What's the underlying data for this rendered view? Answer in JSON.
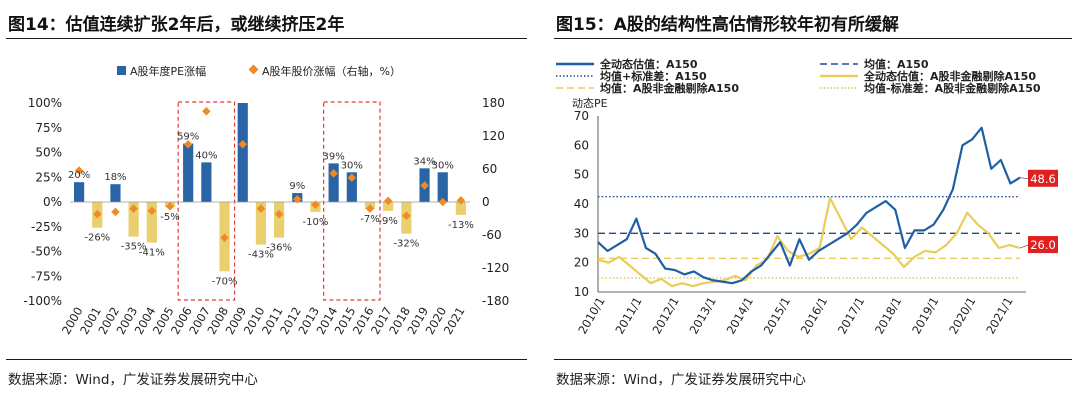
{
  "left": {
    "title": "图14：估值连续扩张2年后，或继续挤压2年",
    "source": "数据来源：Wind，广发证券发展研究中心",
    "chart_data": {
      "type": "bar",
      "categories": [
        "2000",
        "2001",
        "2002",
        "2003",
        "2004",
        "2005",
        "2006",
        "2007",
        "2008",
        "2009",
        "2010",
        "2011",
        "2012",
        "2013",
        "2014",
        "2015",
        "2016",
        "2017",
        "2018",
        "2019",
        "2020",
        "2021"
      ],
      "series": [
        {
          "name": "A股年度PE涨幅",
          "kind": "bar",
          "axis": "left",
          "unit": "%",
          "values": [
            20,
            -26,
            18,
            -35,
            -41,
            -5,
            59,
            40,
            -70,
            100,
            -43,
            -36,
            9,
            -10,
            39,
            30,
            -7,
            -9,
            -32,
            34,
            30,
            -13
          ]
        },
        {
          "name": "A股年股价涨幅（右轴，%）",
          "kind": "marker",
          "axis": "right",
          "unit": "%",
          "values": [
            57,
            -22,
            -18,
            -12,
            -16,
            -8,
            105,
            165,
            -65,
            105,
            -12,
            -22,
            5,
            -5,
            52,
            44,
            -12,
            2,
            -25,
            30,
            0,
            3
          ]
        }
      ],
      "bar_labels": [
        "20%",
        "-26%",
        "18%",
        "-35%",
        "-41%",
        "-5%",
        "59%",
        "40%",
        "-70%",
        "",
        "-43%",
        "-36%",
        "9%",
        "-10%",
        "39%",
        "30%",
        "-7%",
        "-9%",
        "-32%",
        "34%",
        "30%",
        "-13%"
      ],
      "y_left": {
        "min": -100,
        "max": 100,
        "ticks": [
          "100%",
          "75%",
          "50%",
          "25%",
          "0%",
          "-25%",
          "-50%",
          "-75%",
          "-100%"
        ]
      },
      "y_right": {
        "min": -180,
        "max": 180,
        "ticks": [
          "180",
          "120",
          "60",
          "0",
          "-60",
          "-120",
          "-180"
        ]
      },
      "highlight_ranges": [
        [
          "2006",
          "2008"
        ],
        [
          "2014",
          "2016"
        ]
      ],
      "colors": {
        "bar_up": "#2864a6",
        "bar_down": "#e9cf6e",
        "marker": "#f08a24",
        "highlight": "#e53935"
      }
    }
  },
  "right": {
    "title": "图15：A股的结构性高估情形较年初有所缓解",
    "source": "数据来源：Wind，广发证券发展研究中心",
    "chart_data": {
      "type": "line",
      "ylabel": "动态PE",
      "ylim": [
        10,
        70
      ],
      "yticks": [
        "70",
        "60",
        "50",
        "40",
        "30",
        "20",
        "10"
      ],
      "xticks": [
        "2010/1",
        "2011/1",
        "2012/1",
        "2013/1",
        "2014/1",
        "2015/1",
        "2016/1",
        "2017/1",
        "2018/1",
        "2019/1",
        "2020/1",
        "2021/1"
      ],
      "series": [
        {
          "name": "全动态估值：A150",
          "style": "solid",
          "color": "#1f5fa6",
          "values": [
            27,
            24,
            26,
            28,
            35,
            25,
            23,
            18,
            17.5,
            16,
            17,
            15,
            14,
            13.5,
            13,
            14,
            17,
            19,
            23,
            27,
            19,
            28,
            21,
            24,
            26,
            28,
            30,
            33,
            37,
            39,
            41,
            38,
            25,
            31,
            31,
            33,
            38,
            45,
            60,
            62,
            66,
            52,
            55,
            47,
            49
          ]
        },
        {
          "name": "均值：A150",
          "style": "dashed",
          "color": "#1f4e8c",
          "values": [
            30,
            30
          ]
        },
        {
          "name": "均值+标准差：A150",
          "style": "dotted",
          "color": "#1f4e8c",
          "values": [
            42.5,
            42.5
          ]
        },
        {
          "name": "全动态估值：A股非金融剔除A150",
          "style": "solid",
          "color": "#e9cc5a",
          "values": [
            21,
            20,
            22,
            19,
            16,
            13,
            14.5,
            12,
            13,
            12,
            13,
            13.5,
            14,
            15.5,
            14,
            19,
            21,
            29,
            24,
            22,
            23,
            25,
            42,
            35,
            28,
            32,
            29,
            26,
            23,
            18.5,
            22,
            24,
            23.5,
            26,
            30,
            37,
            33,
            30,
            25,
            26,
            25
          ]
        },
        {
          "name": "均值：A股非金融剔除A150",
          "style": "dashed",
          "color": "#e9cc5a",
          "values": [
            21.5,
            21.5
          ]
        },
        {
          "name": "均值-标准差：A股非金融剔除A150",
          "style": "dotted",
          "color": "#e0c040",
          "values": [
            14.8,
            14.8
          ]
        }
      ],
      "annotations": [
        {
          "text": "48.6",
          "series": "全动态估值：A150",
          "value": 48.6
        },
        {
          "text": "26.0",
          "series": "全动态估值：A股非金融剔除A150",
          "value": 26.0
        }
      ],
      "colors": {
        "callout": "#e02020"
      }
    }
  }
}
